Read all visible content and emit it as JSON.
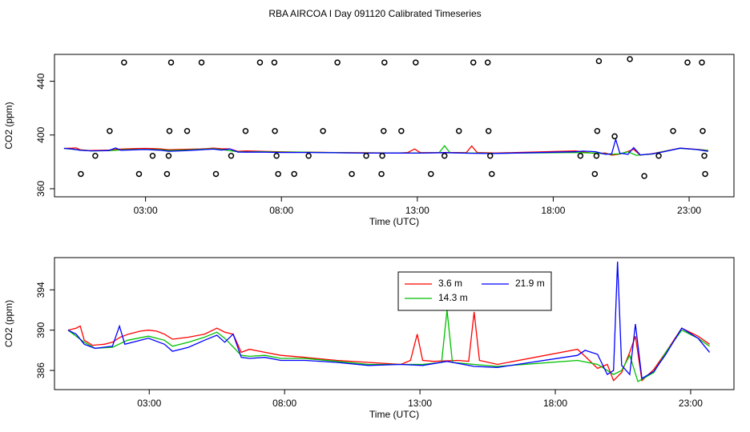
{
  "title": "RBA AIRCOA I  Day 091120  Calibrated Timeseries",
  "chart_data": [
    {
      "type": "scatter",
      "xlabel": "Time (UTC)",
      "ylabel": "CO2 (ppm)",
      "xlim": [
        -0.35,
        24.65
      ],
      "ylim": [
        354,
        460
      ],
      "xticks": [
        {
          "value": 3,
          "label": "03:00"
        },
        {
          "value": 8,
          "label": "08:00"
        },
        {
          "value": 13,
          "label": "13:00"
        },
        {
          "value": 18,
          "label": "18:00"
        },
        {
          "value": 23,
          "label": "23:00"
        }
      ],
      "yticks": [
        360,
        400,
        440
      ],
      "point_color": "#000000",
      "x": [
        0.62,
        1.15,
        1.68,
        2.21,
        2.76,
        3.26,
        3.79,
        3.85,
        3.88,
        3.94,
        4.53,
        5.06,
        5.59,
        6.15,
        6.68,
        7.21,
        7.74,
        7.76,
        7.82,
        7.88,
        8.47,
        9.0,
        9.53,
        10.06,
        10.59,
        11.12,
        11.68,
        11.71,
        11.76,
        11.79,
        12.41,
        12.94,
        13.5,
        14.0,
        14.53,
        15.06,
        15.59,
        15.62,
        15.68,
        15.74,
        19.0,
        19.53,
        19.59,
        19.62,
        19.68,
        20.26,
        20.82,
        21.35,
        21.88,
        22.41,
        22.94,
        23.47,
        23.5,
        23.56,
        23.59
      ],
      "values": [
        371,
        384.5,
        403,
        454,
        371,
        384.5,
        371,
        384.5,
        403,
        454,
        403,
        454,
        371,
        384.5,
        403,
        454,
        454,
        403,
        384.5,
        371,
        371,
        384.5,
        403,
        454,
        371,
        384.5,
        371,
        384.5,
        403,
        454,
        403,
        454,
        371,
        384.5,
        403,
        454,
        454,
        403,
        384.5,
        371,
        384.5,
        371,
        384.5,
        403,
        455,
        399,
        456.5,
        369.5,
        384.5,
        403,
        454,
        454,
        403,
        384.5,
        371
      ],
      "series": [
        {
          "color": "#ff0000",
          "x": [
            0.0,
            0.3,
            0.45,
            0.6,
            0.9,
            1.34,
            1.64,
            1.93,
            2.23,
            2.67,
            2.97,
            3.27,
            3.56,
            3.86,
            4.45,
            5.04,
            5.5,
            5.79,
            6.1,
            6.4,
            6.7,
            7.27,
            7.86,
            8.75,
            9.93,
            11.1,
            12.3,
            12.65,
            12.9,
            13.1,
            13.5,
            14.4,
            14.8,
            15.0,
            15.2,
            15.86,
            18.82,
            19.1,
            19.56,
            19.92,
            20.15,
            20.45,
            20.75,
            20.96,
            21.2,
            21.64,
            22.08,
            22.67,
            23.27,
            23.7
          ],
          "values": [
            390,
            390.2,
            390.4,
            389.0,
            388.5,
            388.6,
            388.8,
            389.3,
            389.6,
            389.9,
            390.0,
            389.9,
            389.6,
            389.1,
            389.3,
            389.6,
            390.2,
            389.8,
            389.6,
            387.8,
            388.1,
            387.8,
            387.5,
            387.3,
            387.0,
            386.8,
            386.6,
            387.0,
            389.6,
            387.0,
            386.9,
            387.0,
            386.9,
            391.8,
            387.0,
            386.6,
            388.1,
            387.4,
            386.2,
            386.6,
            385.0,
            385.8,
            387.8,
            389.4,
            385.0,
            386.1,
            387.8,
            390.2,
            389.4,
            388.6
          ]
        },
        {
          "color": "#00c000",
          "x": [
            0.0,
            0.6,
            1.0,
            1.64,
            2.2,
            2.97,
            3.56,
            3.86,
            4.45,
            5.04,
            5.5,
            5.79,
            6.4,
            6.7,
            7.27,
            7.86,
            8.75,
            9.93,
            11.1,
            12.3,
            13.1,
            13.8,
            14.0,
            14.2,
            15.0,
            15.86,
            18.82,
            19.56,
            19.92,
            20.15,
            20.45,
            20.75,
            21.05,
            21.64,
            22.08,
            22.67,
            23.27,
            23.7
          ],
          "values": [
            390,
            388.8,
            388.2,
            388.3,
            389.0,
            389.4,
            389.0,
            388.4,
            388.8,
            389.3,
            389.8,
            389.2,
            387.5,
            387.4,
            387.5,
            387.2,
            387.2,
            386.9,
            386.6,
            386.6,
            386.6,
            386.8,
            392.0,
            386.8,
            386.6,
            386.4,
            387.0,
            386.6,
            386.0,
            385.6,
            386.0,
            387.5,
            384.9,
            385.8,
            387.8,
            390.0,
            389.2,
            388.4
          ]
        },
        {
          "color": "#0000ff",
          "x": [
            0.0,
            0.3,
            0.6,
            1.0,
            1.64,
            1.9,
            2.1,
            2.97,
            3.56,
            3.86,
            4.45,
            5.04,
            5.5,
            5.79,
            6.1,
            6.4,
            6.7,
            7.27,
            7.86,
            8.75,
            9.93,
            11.1,
            12.3,
            13.1,
            14.0,
            15.0,
            15.86,
            18.82,
            19.1,
            19.56,
            19.92,
            20.15,
            20.3,
            20.45,
            20.75,
            20.96,
            21.2,
            21.64,
            22.08,
            22.67,
            23.27,
            23.7
          ],
          "values": [
            390,
            389.6,
            388.6,
            388.2,
            388.4,
            390.4,
            388.6,
            389.2,
            388.6,
            387.9,
            388.3,
            389.0,
            389.5,
            388.8,
            389.6,
            387.3,
            387.2,
            387.3,
            387.0,
            387.0,
            386.8,
            386.5,
            386.6,
            386.5,
            386.9,
            386.4,
            386.3,
            387.5,
            388.0,
            387.6,
            385.6,
            386.0,
            396.8,
            386.5,
            385.6,
            390.6,
            385.2,
            385.9,
            387.6,
            390.2,
            389.2,
            387.8
          ]
        }
      ]
    },
    {
      "type": "line",
      "xlabel": "Time (UTC)",
      "ylabel": "CO2 (ppm)",
      "xlim": [
        -0.5,
        24.6
      ],
      "ylim": [
        384.1,
        397.2
      ],
      "xticks": [
        {
          "value": 3,
          "label": "03:00"
        },
        {
          "value": 8,
          "label": "08:00"
        },
        {
          "value": 13,
          "label": "13:00"
        },
        {
          "value": 18,
          "label": "18:00"
        },
        {
          "value": 23,
          "label": "23:00"
        }
      ],
      "yticks": [
        386,
        390,
        394
      ],
      "legend": "top",
      "series": [
        {
          "name": "3.6 m",
          "color": "#ff0000",
          "x": [
            0.0,
            0.3,
            0.45,
            0.6,
            0.9,
            1.34,
            1.64,
            1.93,
            2.23,
            2.67,
            2.97,
            3.27,
            3.56,
            3.86,
            4.45,
            5.04,
            5.5,
            5.79,
            6.1,
            6.4,
            6.7,
            7.27,
            7.86,
            8.75,
            9.93,
            11.1,
            12.3,
            12.65,
            12.9,
            13.1,
            13.5,
            14.4,
            14.8,
            15.0,
            15.2,
            15.86,
            18.82,
            19.1,
            19.56,
            19.92,
            20.15,
            20.45,
            20.75,
            20.96,
            21.2,
            21.64,
            22.08,
            22.67,
            23.27,
            23.7
          ],
          "values": [
            390,
            390.2,
            390.4,
            389.0,
            388.5,
            388.6,
            388.8,
            389.3,
            389.6,
            389.9,
            390.0,
            389.9,
            389.6,
            389.1,
            389.3,
            389.6,
            390.2,
            389.8,
            389.6,
            387.8,
            388.1,
            387.8,
            387.5,
            387.3,
            387.0,
            386.8,
            386.6,
            387.0,
            389.6,
            387.0,
            386.9,
            387.0,
            386.9,
            391.8,
            387.0,
            386.6,
            388.1,
            387.4,
            386.2,
            386.6,
            385.0,
            385.8,
            387.8,
            389.4,
            385.0,
            386.1,
            387.8,
            390.2,
            389.4,
            388.6
          ]
        },
        {
          "name": "14.3 m",
          "color": "#00c000",
          "x": [
            0.0,
            0.6,
            1.0,
            1.64,
            2.2,
            2.97,
            3.56,
            3.86,
            4.45,
            5.04,
            5.5,
            5.79,
            6.4,
            6.7,
            7.27,
            7.86,
            8.75,
            9.93,
            11.1,
            12.3,
            13.1,
            13.8,
            14.0,
            14.2,
            15.0,
            15.86,
            18.82,
            19.56,
            19.92,
            20.15,
            20.45,
            20.75,
            21.05,
            21.64,
            22.08,
            22.67,
            23.27,
            23.7
          ],
          "values": [
            390,
            388.8,
            388.2,
            388.3,
            389.0,
            389.4,
            389.0,
            388.4,
            388.8,
            389.3,
            389.8,
            389.2,
            387.5,
            387.4,
            387.5,
            387.2,
            387.2,
            386.9,
            386.6,
            386.6,
            386.6,
            386.8,
            392.0,
            386.8,
            386.6,
            386.4,
            387.0,
            386.6,
            386.0,
            385.6,
            386.0,
            387.5,
            384.9,
            385.8,
            387.8,
            390.0,
            389.2,
            388.4
          ]
        },
        {
          "name": "21.9 m",
          "color": "#0000ff",
          "x": [
            0.0,
            0.3,
            0.6,
            1.0,
            1.64,
            1.9,
            2.1,
            2.97,
            3.56,
            3.86,
            4.45,
            5.04,
            5.5,
            5.79,
            6.1,
            6.4,
            6.7,
            7.27,
            7.86,
            8.75,
            9.93,
            11.1,
            12.3,
            13.1,
            14.0,
            15.0,
            15.86,
            18.82,
            19.1,
            19.56,
            19.92,
            20.15,
            20.3,
            20.45,
            20.75,
            20.96,
            21.2,
            21.64,
            22.08,
            22.67,
            23.27,
            23.7
          ],
          "values": [
            390,
            389.6,
            388.6,
            388.2,
            388.4,
            390.4,
            388.6,
            389.2,
            388.6,
            387.9,
            388.3,
            389.0,
            389.5,
            388.8,
            389.6,
            387.3,
            387.2,
            387.3,
            387.0,
            387.0,
            386.8,
            386.5,
            386.6,
            386.5,
            386.9,
            386.4,
            386.3,
            387.5,
            388.0,
            387.6,
            385.6,
            386.0,
            396.8,
            386.5,
            385.6,
            390.6,
            385.2,
            385.9,
            387.6,
            390.2,
            389.2,
            387.8
          ]
        }
      ]
    }
  ]
}
